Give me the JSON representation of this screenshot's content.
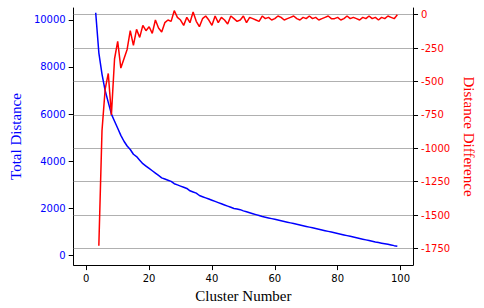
{
  "chart_data": {
    "type": "line",
    "x_label": "Cluster Number",
    "y_label": "Total Distance",
    "y2_label": "Distance Difference",
    "xlim": [
      -4,
      104
    ],
    "xticks": [
      0,
      20,
      40,
      60,
      80,
      100
    ],
    "ylim": [
      -400,
      10500
    ],
    "yticks": [
      0,
      2000,
      4000,
      6000,
      8000,
      10000
    ],
    "y2lim": [
      -1875,
      50
    ],
    "y2ticks": [
      0,
      -250,
      -500,
      -750,
      -1000,
      -1250,
      -1500,
      -1750
    ],
    "grid": true,
    "series": [
      {
        "name": "Total Distance",
        "color": "#0000ff",
        "axis": "y",
        "x": [
          3,
          4,
          5,
          6,
          7,
          8,
          9,
          10,
          11,
          12,
          13,
          14,
          15,
          16,
          17,
          18,
          19,
          20,
          21,
          22,
          23,
          24,
          25,
          26,
          27,
          28,
          29,
          30,
          31,
          32,
          33,
          34,
          35,
          36,
          37,
          38,
          39,
          40,
          41,
          42,
          43,
          44,
          45,
          46,
          47,
          48,
          49,
          50,
          51,
          52,
          53,
          54,
          55,
          56,
          57,
          58,
          59,
          60,
          61,
          62,
          63,
          64,
          65,
          66,
          67,
          68,
          69,
          70,
          71,
          72,
          73,
          74,
          75,
          76,
          77,
          78,
          79,
          80,
          81,
          82,
          83,
          84,
          85,
          86,
          87,
          88,
          89,
          90,
          91,
          92,
          93,
          94,
          95,
          96,
          97,
          98,
          99
        ],
        "values": [
          10300,
          8600,
          7700,
          7000,
          6500,
          6000,
          5700,
          5400,
          5100,
          4850,
          4650,
          4500,
          4300,
          4200,
          4050,
          3900,
          3800,
          3700,
          3600,
          3500,
          3400,
          3300,
          3250,
          3200,
          3150,
          3050,
          3000,
          2950,
          2900,
          2850,
          2750,
          2700,
          2650,
          2550,
          2500,
          2450,
          2400,
          2350,
          2300,
          2250,
          2200,
          2150,
          2100,
          2050,
          2000,
          1980,
          1950,
          1900,
          1860,
          1820,
          1780,
          1740,
          1700,
          1660,
          1630,
          1600,
          1570,
          1540,
          1510,
          1480,
          1450,
          1420,
          1390,
          1360,
          1330,
          1300,
          1270,
          1240,
          1210,
          1180,
          1150,
          1120,
          1090,
          1060,
          1030,
          1000,
          970,
          940,
          910,
          880,
          850,
          820,
          790,
          760,
          730,
          700,
          670,
          640,
          610,
          580,
          555,
          530,
          505,
          480,
          455,
          425,
          400
        ]
      },
      {
        "name": "Distance Difference",
        "color": "#ff0000",
        "axis": "y2",
        "x": [
          4,
          5,
          6,
          7,
          8,
          9,
          10,
          11,
          12,
          13,
          14,
          15,
          16,
          17,
          18,
          19,
          20,
          21,
          22,
          23,
          24,
          25,
          26,
          27,
          28,
          29,
          30,
          31,
          32,
          33,
          34,
          35,
          36,
          37,
          38,
          39,
          40,
          41,
          42,
          43,
          44,
          45,
          46,
          47,
          48,
          49,
          50,
          51,
          52,
          53,
          54,
          55,
          56,
          57,
          58,
          59,
          60,
          61,
          62,
          63,
          64,
          65,
          66,
          67,
          68,
          69,
          70,
          71,
          72,
          73,
          74,
          75,
          76,
          77,
          78,
          79,
          80,
          81,
          82,
          83,
          84,
          85,
          86,
          87,
          88,
          89,
          90,
          91,
          92,
          93,
          94,
          95,
          96,
          97,
          98,
          99
        ],
        "values": [
          -1730,
          -870,
          -560,
          -440,
          -750,
          -330,
          -200,
          -400,
          -330,
          -260,
          -120,
          -230,
          -110,
          -170,
          -80,
          -120,
          -90,
          -140,
          -40,
          -100,
          -130,
          -60,
          -40,
          -50,
          30,
          -20,
          -40,
          -80,
          -20,
          -60,
          20,
          -50,
          -90,
          -30,
          -10,
          -40,
          -80,
          -10,
          -60,
          -20,
          -40,
          -70,
          -10,
          -30,
          -50,
          -40,
          -10,
          -60,
          -20,
          -30,
          -40,
          -50,
          -10,
          -30,
          -20,
          -40,
          -30,
          -10,
          -20,
          -40,
          -30,
          -20,
          -10,
          -30,
          -40,
          -20,
          -30,
          -10,
          -30,
          -20,
          -40,
          -30,
          -20,
          -10,
          -30,
          -30,
          -20,
          -40,
          -30,
          -10,
          -30,
          -20,
          -30,
          -40,
          -20,
          -30,
          -10,
          -30,
          -20,
          -40,
          -20,
          -30,
          -10,
          -20,
          -30,
          0
        ]
      }
    ]
  }
}
